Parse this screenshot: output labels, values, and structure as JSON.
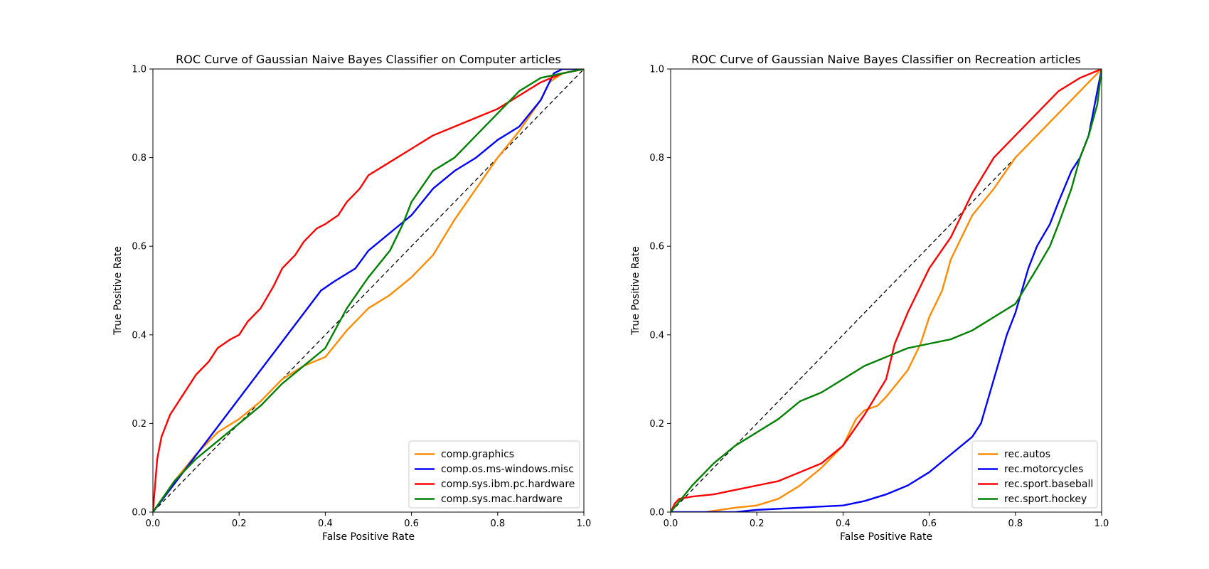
{
  "chart_data": [
    {
      "type": "line",
      "title": "ROC Curve of Gaussian Naive Bayes Classifier on Computer articles",
      "xlabel": "False Positive Rate",
      "ylabel": "True Positive Rate",
      "xlim": [
        0,
        1
      ],
      "ylim": [
        0,
        1
      ],
      "xticks": [
        "0.0",
        "0.2",
        "0.4",
        "0.6",
        "0.8",
        "1.0"
      ],
      "yticks": [
        "0.0",
        "0.2",
        "0.4",
        "0.6",
        "0.8",
        "1.0"
      ],
      "grid": false,
      "legend_position": "lower-right",
      "diagonal": {
        "x": [
          0,
          1
        ],
        "y": [
          0,
          1
        ],
        "color": "#000000",
        "style": "dashed"
      },
      "series": [
        {
          "name": "comp.graphics",
          "color": "#ff8c00",
          "x": [
            0,
            0.05,
            0.1,
            0.15,
            0.2,
            0.25,
            0.3,
            0.35,
            0.4,
            0.45,
            0.5,
            0.55,
            0.6,
            0.65,
            0.7,
            0.75,
            0.8,
            0.85,
            0.9,
            0.92,
            0.95,
            1.0
          ],
          "y": [
            0,
            0.07,
            0.13,
            0.18,
            0.21,
            0.25,
            0.3,
            0.33,
            0.35,
            0.41,
            0.46,
            0.49,
            0.53,
            0.58,
            0.66,
            0.73,
            0.8,
            0.86,
            0.93,
            0.97,
            0.99,
            1.0
          ]
        },
        {
          "name": "comp.os.ms-windows.misc",
          "color": "#0000ff",
          "x": [
            0,
            0.39,
            0.42,
            0.47,
            0.5,
            0.55,
            0.6,
            0.65,
            0.7,
            0.75,
            0.8,
            0.85,
            0.9,
            0.93,
            0.95,
            1.0
          ],
          "y": [
            0,
            0.5,
            0.52,
            0.55,
            0.59,
            0.63,
            0.67,
            0.73,
            0.77,
            0.8,
            0.84,
            0.87,
            0.93,
            0.99,
            1.0,
            1.0
          ]
        },
        {
          "name": "comp.sys.ibm.pc.hardware",
          "color": "#ff0000",
          "x": [
            0,
            0.01,
            0.02,
            0.04,
            0.06,
            0.08,
            0.1,
            0.13,
            0.15,
            0.18,
            0.2,
            0.22,
            0.25,
            0.28,
            0.3,
            0.33,
            0.35,
            0.38,
            0.4,
            0.43,
            0.45,
            0.48,
            0.5,
            0.55,
            0.6,
            0.65,
            0.7,
            0.75,
            0.8,
            0.85,
            0.9,
            0.95,
            1.0
          ],
          "y": [
            0,
            0.12,
            0.17,
            0.22,
            0.25,
            0.28,
            0.31,
            0.34,
            0.37,
            0.39,
            0.4,
            0.43,
            0.46,
            0.51,
            0.55,
            0.58,
            0.61,
            0.64,
            0.65,
            0.67,
            0.7,
            0.73,
            0.76,
            0.79,
            0.82,
            0.85,
            0.87,
            0.89,
            0.91,
            0.94,
            0.97,
            0.99,
            1.0
          ]
        },
        {
          "name": "comp.sys.mac.hardware",
          "color": "#008000",
          "x": [
            0,
            0.05,
            0.1,
            0.15,
            0.2,
            0.25,
            0.3,
            0.35,
            0.4,
            0.45,
            0.5,
            0.55,
            0.58,
            0.6,
            0.65,
            0.7,
            0.75,
            0.8,
            0.85,
            0.9,
            0.95,
            1.0
          ],
          "y": [
            0,
            0.07,
            0.12,
            0.16,
            0.2,
            0.24,
            0.29,
            0.33,
            0.37,
            0.46,
            0.53,
            0.59,
            0.65,
            0.7,
            0.77,
            0.8,
            0.85,
            0.9,
            0.95,
            0.98,
            0.99,
            1.0
          ]
        }
      ]
    },
    {
      "type": "line",
      "title": "ROC Curve of Gaussian Naive Bayes Classifier on Recreation articles",
      "xlabel": "False Positive Rate",
      "ylabel": "True Positive Rate",
      "xlim": [
        0,
        1
      ],
      "ylim": [
        0,
        1
      ],
      "xticks": [
        "0.0",
        "0.2",
        "0.4",
        "0.6",
        "0.8",
        "1.0"
      ],
      "yticks": [
        "0.0",
        "0.2",
        "0.4",
        "0.6",
        "0.8",
        "1.0"
      ],
      "grid": false,
      "legend_position": "lower-right",
      "diagonal": {
        "x": [
          0,
          1
        ],
        "y": [
          0,
          1
        ],
        "color": "#000000",
        "style": "dashed"
      },
      "series": [
        {
          "name": "rec.autos",
          "color": "#ff8c00",
          "x": [
            0.08,
            0.15,
            0.2,
            0.25,
            0.3,
            0.35,
            0.4,
            0.43,
            0.45,
            0.48,
            0.5,
            0.55,
            0.58,
            0.6,
            0.63,
            0.65,
            0.7,
            0.75,
            0.8,
            0.85,
            0.9,
            0.95,
            1.0
          ],
          "y": [
            0.0,
            0.01,
            0.015,
            0.03,
            0.06,
            0.1,
            0.15,
            0.21,
            0.23,
            0.24,
            0.26,
            0.32,
            0.38,
            0.44,
            0.5,
            0.57,
            0.67,
            0.73,
            0.8,
            0.85,
            0.9,
            0.95,
            1.0
          ]
        },
        {
          "name": "rec.motorcycles",
          "color": "#0000ff",
          "x": [
            0,
            0.15,
            0.2,
            0.3,
            0.4,
            0.45,
            0.5,
            0.55,
            0.6,
            0.65,
            0.7,
            0.72,
            0.75,
            0.78,
            0.8,
            0.83,
            0.85,
            0.88,
            0.9,
            0.93,
            0.95,
            0.97,
            0.98,
            0.99,
            1.0
          ],
          "y": [
            0,
            0.0,
            0.005,
            0.01,
            0.015,
            0.025,
            0.04,
            0.06,
            0.09,
            0.13,
            0.17,
            0.2,
            0.3,
            0.4,
            0.45,
            0.55,
            0.6,
            0.65,
            0.7,
            0.77,
            0.8,
            0.85,
            0.9,
            0.95,
            1.0
          ]
        },
        {
          "name": "rec.sport.baseball",
          "color": "#ff0000",
          "x": [
            0,
            0.01,
            0.02,
            0.05,
            0.1,
            0.15,
            0.2,
            0.25,
            0.3,
            0.35,
            0.4,
            0.45,
            0.5,
            0.52,
            0.55,
            0.58,
            0.6,
            0.65,
            0.7,
            0.75,
            0.8,
            0.85,
            0.9,
            0.95,
            1.0
          ],
          "y": [
            0,
            0.02,
            0.03,
            0.035,
            0.04,
            0.05,
            0.06,
            0.07,
            0.09,
            0.11,
            0.15,
            0.22,
            0.3,
            0.38,
            0.45,
            0.51,
            0.55,
            0.62,
            0.72,
            0.8,
            0.85,
            0.9,
            0.95,
            0.98,
            1.0
          ]
        },
        {
          "name": "rec.sport.hockey",
          "color": "#008000",
          "x": [
            0,
            0.05,
            0.1,
            0.15,
            0.2,
            0.25,
            0.3,
            0.35,
            0.4,
            0.45,
            0.5,
            0.55,
            0.6,
            0.65,
            0.7,
            0.75,
            0.8,
            0.85,
            0.88,
            0.9,
            0.93,
            0.95,
            0.97,
            0.99,
            1.0
          ],
          "y": [
            0,
            0.06,
            0.11,
            0.15,
            0.18,
            0.21,
            0.25,
            0.27,
            0.3,
            0.33,
            0.35,
            0.37,
            0.38,
            0.39,
            0.41,
            0.44,
            0.47,
            0.55,
            0.6,
            0.65,
            0.73,
            0.8,
            0.85,
            0.92,
            1.0
          ]
        }
      ]
    }
  ]
}
